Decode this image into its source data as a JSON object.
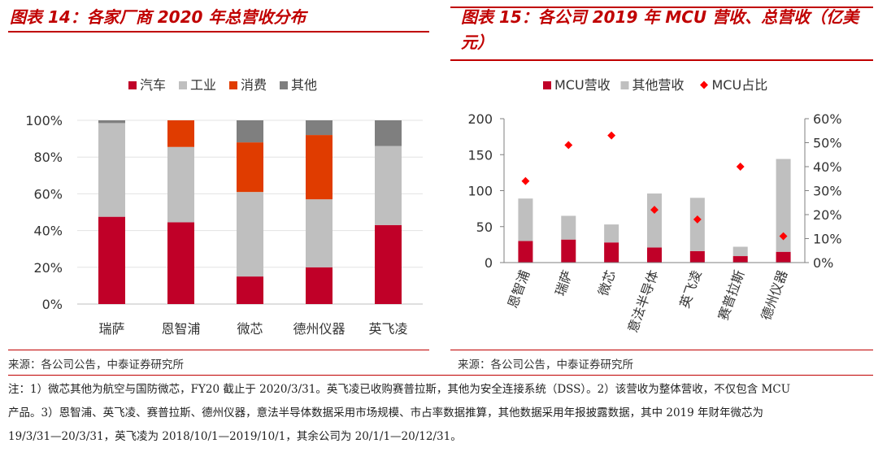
{
  "left": {
    "title": "图表 14：各家厂商 2020 年总营收分布",
    "source": "来源：各公司公告，中泰证券研究所"
  },
  "right": {
    "title_line1": "图表 15：各公司 2019 年 MCU 营收、总营收（亿美",
    "title_line2": "元）",
    "source": "来源：各公司公告，中泰证券研究所"
  },
  "note": {
    "line1": "注：1）微芯其他为航空与国防微芯，FY20 截止于 2020/3/31。英飞凌已收购赛普拉斯，其他为安全连接系统（DSS）。2）该营收为整体营收，不仅包含 MCU",
    "line2": "产品。3）恩智浦、英飞凌、赛普拉斯、德州仪器，意法半导体数据采用市场规模、市占率数据推算，其他数据采用年报披露数据，其中 2019 年财年微芯为",
    "line3": "19/3/31—20/3/31，英飞凌为 2018/10/1—2019/10/1，其余公司为 20/1/1—20/12/31。"
  },
  "chart_data": [
    {
      "type": "bar",
      "stacked": true,
      "categories": [
        "瑞萨",
        "恩智浦",
        "微芯",
        "德州仪器",
        "英飞凌"
      ],
      "series": [
        {
          "name": "汽车",
          "color": "#c00028",
          "values": [
            47.5,
            44.5,
            15,
            20,
            43
          ]
        },
        {
          "name": "工业",
          "color": "#bfbfbf",
          "values": [
            51,
            41,
            46,
            37,
            43
          ]
        },
        {
          "name": "消费",
          "color": "#e03c00",
          "values": [
            0,
            14.5,
            27,
            35,
            0
          ]
        },
        {
          "name": "其他",
          "color": "#7f7f7f",
          "values": [
            1.5,
            0,
            12,
            8,
            14
          ]
        }
      ],
      "yticks": [
        "0%",
        "20%",
        "40%",
        "60%",
        "80%",
        "100%"
      ],
      "ylim": [
        0,
        100
      ],
      "legend": "top"
    },
    {
      "type": "bar",
      "stacked": true,
      "categories": [
        "恩智浦",
        "瑞萨",
        "微芯",
        "意法半导体",
        "英飞凌",
        "赛普拉斯",
        "德州仪器"
      ],
      "series": [
        {
          "name": "MCU营收",
          "color": "#c00028",
          "values": [
            30,
            32,
            28,
            21,
            16,
            9,
            15
          ]
        },
        {
          "name": "其他营收",
          "color": "#bfbfbf",
          "values": [
            59,
            33,
            25,
            75,
            74,
            13,
            129
          ]
        },
        {
          "name": "MCU占比",
          "color": "#ff0000",
          "type": "scatter",
          "axis": "right",
          "values": [
            34,
            49,
            53,
            22,
            18,
            40,
            11
          ]
        }
      ],
      "yticks_left": [
        "0",
        "50",
        "100",
        "150",
        "200"
      ],
      "ylim_left": [
        0,
        200
      ],
      "yticks_right": [
        "0%",
        "10%",
        "20%",
        "30%",
        "40%",
        "50%",
        "60%"
      ],
      "ylim_right": [
        0,
        60
      ],
      "legend": "top"
    }
  ]
}
